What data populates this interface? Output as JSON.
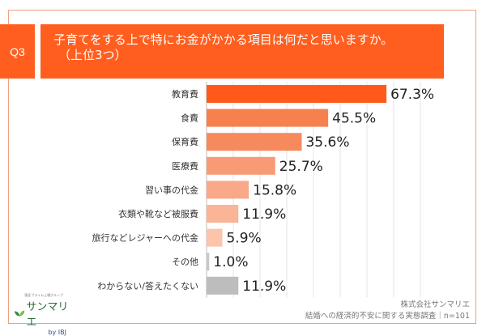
{
  "header": {
    "question_no": "Q3",
    "title_line1": "子育てをする上で特にお金がかかる項目は何だと思いますか。",
    "title_line2": "（上位3つ）",
    "accent_color": "#ff5e1f"
  },
  "chart_data": {
    "type": "bar",
    "orientation": "horizontal",
    "categories": [
      "教育費",
      "食費",
      "保育費",
      "医療費",
      "習い事の代金",
      "衣類や靴など被服費",
      "旅行などレジャーへの代金",
      "その他",
      "わからない/答えたくない"
    ],
    "values": [
      67.3,
      45.5,
      35.6,
      25.7,
      15.8,
      11.9,
      5.9,
      1.0,
      11.9
    ],
    "value_labels": [
      "67.3%",
      "45.5%",
      "35.6%",
      "25.7%",
      "15.8%",
      "11.9%",
      "5.9%",
      "1.0%",
      "11.9%"
    ],
    "colors": [
      "#ff5a1a",
      "#f7804f",
      "#f78a5d",
      "#f89b75",
      "#f9a888",
      "#fab496",
      "#fbc4ab",
      "#c8c8c8",
      "#bdbdbd"
    ],
    "unit": "%",
    "xlim": [
      0,
      80
    ],
    "grid": true
  },
  "footer": {
    "company": "株式会社サンマリエ",
    "survey": "結婚への経済的不安に関する実態調査｜n=101",
    "logo_tagline": "東証プライム上場グループ",
    "logo_name": "サンマリエ",
    "logo_by": "by IBJ"
  }
}
